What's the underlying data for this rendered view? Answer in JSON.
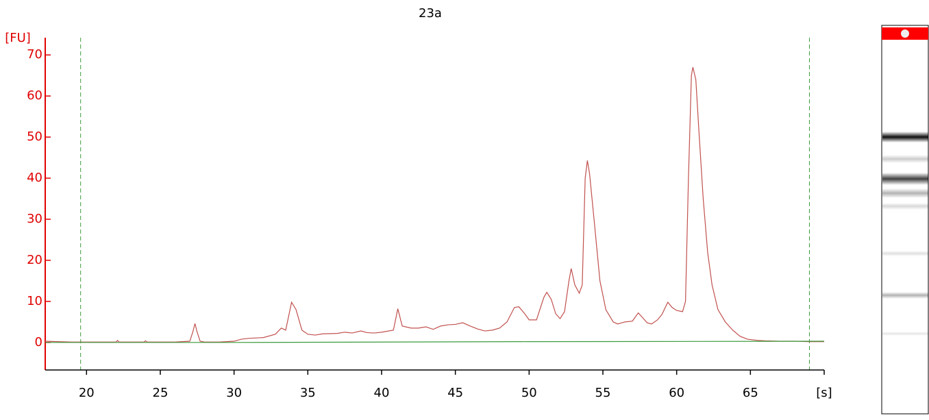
{
  "chart_data": {
    "type": "line",
    "title": "23a",
    "y_label": "[FU]",
    "xlim": [
      17.2,
      70
    ],
    "ylim": [
      -6.7,
      74.2
    ],
    "xticks": [
      20,
      25,
      30,
      35,
      40,
      45,
      50,
      55,
      60,
      65,
      {
        "value": 70,
        "label": "[s]"
      }
    ],
    "yticks": [
      0,
      10,
      20,
      30,
      40,
      50,
      60,
      70
    ],
    "markers": [
      19.6,
      69.0
    ],
    "marker_color": "#3a9a3a",
    "axis_color": "#e00000",
    "x": [
      17.2,
      18,
      19,
      20,
      21,
      22,
      22.1,
      22.2,
      23,
      23.9,
      24,
      24.1,
      26,
      27,
      27.2,
      27.35,
      27.5,
      27.7,
      28,
      29,
      30,
      30.5,
      31,
      32,
      32.8,
      33.2,
      33.5,
      33.9,
      34.2,
      34.6,
      35,
      35.5,
      36,
      37,
      37.5,
      38,
      38.6,
      39,
      39.5,
      40,
      40.8,
      41.1,
      41.4,
      42,
      42.5,
      43,
      43.5,
      44,
      44.5,
      45,
      45.5,
      46,
      46.5,
      47,
      47.5,
      48,
      48.5,
      49,
      49.3,
      49.7,
      50,
      50.5,
      51,
      51.2,
      51.5,
      51.8,
      52.1,
      52.4,
      52.7,
      52.85,
      53.1,
      53.4,
      53.6,
      53.8,
      53.95,
      54.1,
      54.4,
      54.8,
      55.2,
      55.7,
      56,
      56.5,
      57,
      57.4,
      57.7,
      58,
      58.3,
      58.7,
      59,
      59.4,
      59.7,
      60,
      60.4,
      60.6,
      60.8,
      61,
      61.1,
      61.3,
      61.5,
      61.8,
      62.1,
      62.4,
      62.8,
      63.3,
      63.8,
      64.3,
      64.8,
      65.5,
      66,
      67,
      68,
      69,
      70
    ],
    "series": [
      {
        "color": "#c0504d",
        "values": [
          0.3,
          0.2,
          0.1,
          0.1,
          0.1,
          0.1,
          0.5,
          0.1,
          0.1,
          0.1,
          0.4,
          0.1,
          0.1,
          0.3,
          2.5,
          4.6,
          2.5,
          0.3,
          0.1,
          0.1,
          0.3,
          0.8,
          1,
          1.2,
          2,
          3.5,
          3,
          9.8,
          8,
          3,
          2,
          1.8,
          2.1,
          2.2,
          2.5,
          2.3,
          2.8,
          2.4,
          2.3,
          2.5,
          3,
          8.2,
          4,
          3.5,
          3.5,
          3.8,
          3.2,
          4,
          4.3,
          4.4,
          4.8,
          4,
          3.3,
          2.8,
          3,
          3.5,
          5,
          8.5,
          8.7,
          7,
          5.5,
          5.5,
          11,
          12.2,
          10.5,
          7,
          5.8,
          7.5,
          15,
          18,
          14,
          12,
          14,
          40,
          44.3,
          41,
          30,
          15,
          8,
          5,
          4.5,
          5,
          5.2,
          7.2,
          6,
          4.8,
          4.5,
          5.5,
          6.8,
          9.8,
          8.5,
          7.8,
          7.5,
          10,
          40,
          65,
          67,
          64,
          52,
          35,
          22,
          14,
          8,
          5,
          3,
          1.5,
          0.8,
          0.5,
          0.4,
          0.3,
          0.3,
          0.2,
          0.2
        ]
      },
      {
        "color": "#3a9a3a",
        "x": [
          17.2,
          30,
          50,
          70
        ],
        "values": [
          0,
          0,
          0.2,
          0.3
        ]
      }
    ]
  }
}
